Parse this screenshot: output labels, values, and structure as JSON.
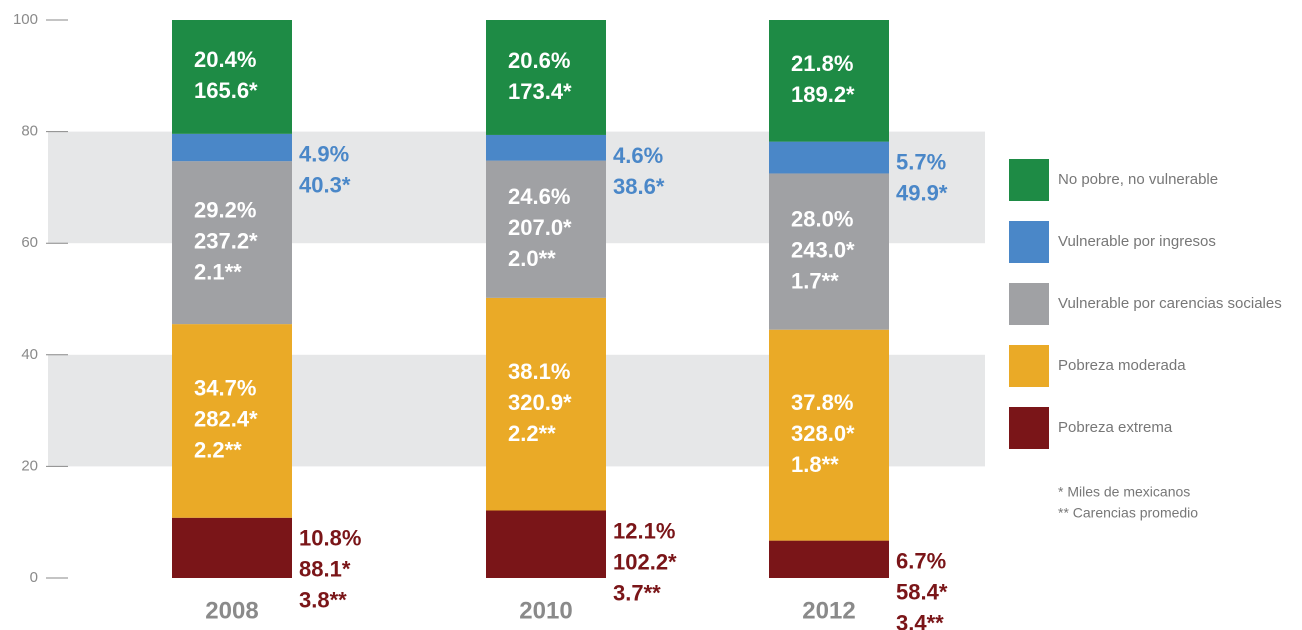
{
  "chart_data": {
    "type": "stacked_bar",
    "categories": [
      "2008",
      "2010",
      "2012"
    ],
    "ylim": [
      0,
      100
    ],
    "yticks": [
      0,
      20,
      40,
      60,
      80,
      100
    ],
    "grid": true,
    "series": [
      {
        "name": "Pobreza extrema",
        "color": "#7a1518",
        "label_position": "outside",
        "values": [
          10.8,
          12.1,
          6.7
        ],
        "value_labels": [
          "10.8%",
          "12.1%",
          "6.7%"
        ],
        "count_labels": [
          "88.1*",
          "102.2*",
          "58.4*"
        ],
        "deprivation_labels": [
          "3.8**",
          "3.7**",
          "3.4**"
        ]
      },
      {
        "name": "Pobreza moderada",
        "color": "#eaaa27",
        "label_position": "inside",
        "values": [
          34.7,
          38.1,
          37.8
        ],
        "value_labels": [
          "34.7%",
          "38.1%",
          "37.8%"
        ],
        "count_labels": [
          "282.4*",
          "320.9*",
          "328.0*"
        ],
        "deprivation_labels": [
          "2.2**",
          "2.2**",
          "1.8**"
        ]
      },
      {
        "name": "Vulnerable por carencias sociales",
        "color": "#a0a1a4",
        "label_position": "inside",
        "values": [
          29.2,
          24.6,
          28.0
        ],
        "value_labels": [
          "29.2%",
          "24.6%",
          "28.0%"
        ],
        "count_labels": [
          "237.2*",
          "207.0*",
          "243.0*"
        ],
        "deprivation_labels": [
          "2.1**",
          "2.0**",
          "1.7**"
        ]
      },
      {
        "name": "Vulnerable por ingresos",
        "color": "#4a87c8",
        "label_position": "outside",
        "values": [
          4.9,
          4.6,
          5.7
        ],
        "value_labels": [
          "4.9%",
          "4.6%",
          "5.7%"
        ],
        "count_labels": [
          "40.3*",
          "38.6*",
          "49.9*"
        ]
      },
      {
        "name": "No pobre, no vulnerable",
        "color": "#1e8b45",
        "label_position": "inside",
        "values": [
          20.4,
          20.6,
          21.8
        ],
        "value_labels": [
          "20.4%",
          "20.6%",
          "21.8%"
        ],
        "count_labels": [
          "165.6*",
          "173.4*",
          "189.2*"
        ]
      }
    ],
    "notes": [
      "* Miles de mexicanos",
      "** Carencias promedio"
    ]
  }
}
